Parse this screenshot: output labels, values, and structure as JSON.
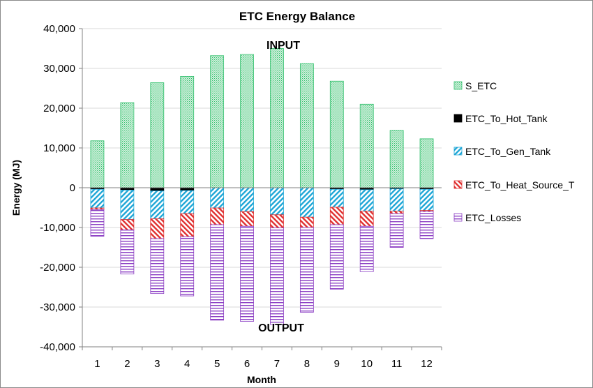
{
  "chart_data": {
    "type": "bar",
    "stacked": true,
    "title": "ETC Energy Balance",
    "xlabel": "Month",
    "ylabel": "Energy  (MJ)",
    "ylim": [
      -40000,
      40000
    ],
    "ytick_step": 10000,
    "ytick_labels": [
      "40,000",
      "30,000",
      "20,000",
      "10,000",
      "0",
      "-10,000",
      "-20,000",
      "-30,000",
      "-40,000"
    ],
    "categories": [
      "1",
      "2",
      "3",
      "4",
      "5",
      "6",
      "7",
      "8",
      "9",
      "10",
      "11",
      "12"
    ],
    "annotations": {
      "top": "INPUT",
      "bottom": "OUTPUT"
    },
    "legend_position": "right",
    "grid": true,
    "series": [
      {
        "name": "S_ETC",
        "color": "#2fbf6b",
        "pattern": "dots",
        "values": [
          11800,
          21400,
          26400,
          28000,
          33200,
          33500,
          35000,
          31200,
          26800,
          21000,
          14400,
          12300
        ]
      },
      {
        "name": "ETC_To_Hot_Tank",
        "color": "#000000",
        "pattern": "solid",
        "values": [
          -400,
          -600,
          -800,
          -700,
          0,
          0,
          0,
          0,
          -400,
          -500,
          -300,
          -400
        ]
      },
      {
        "name": "ETC_To_Gen_Tank",
        "color": "#1ea6d6",
        "pattern": "diagonal",
        "values": [
          -4700,
          -7400,
          -7000,
          -5800,
          -5100,
          -6000,
          -6800,
          -7400,
          -4500,
          -5400,
          -5600,
          -5300
        ]
      },
      {
        "name": "ETC_To_Heat_Source_T",
        "color": "#e03030",
        "pattern": "diagonal",
        "values": [
          -400,
          -2600,
          -5000,
          -5800,
          -4200,
          -3700,
          -3300,
          -2600,
          -4400,
          -3800,
          -600,
          -300
        ]
      },
      {
        "name": "ETC_Losses",
        "color": "#8c3fc4",
        "pattern": "horizontal",
        "values": [
          -6700,
          -11100,
          -13800,
          -14900,
          -24000,
          -23900,
          -24300,
          -21300,
          -16200,
          -11400,
          -8500,
          -6800
        ]
      }
    ]
  }
}
